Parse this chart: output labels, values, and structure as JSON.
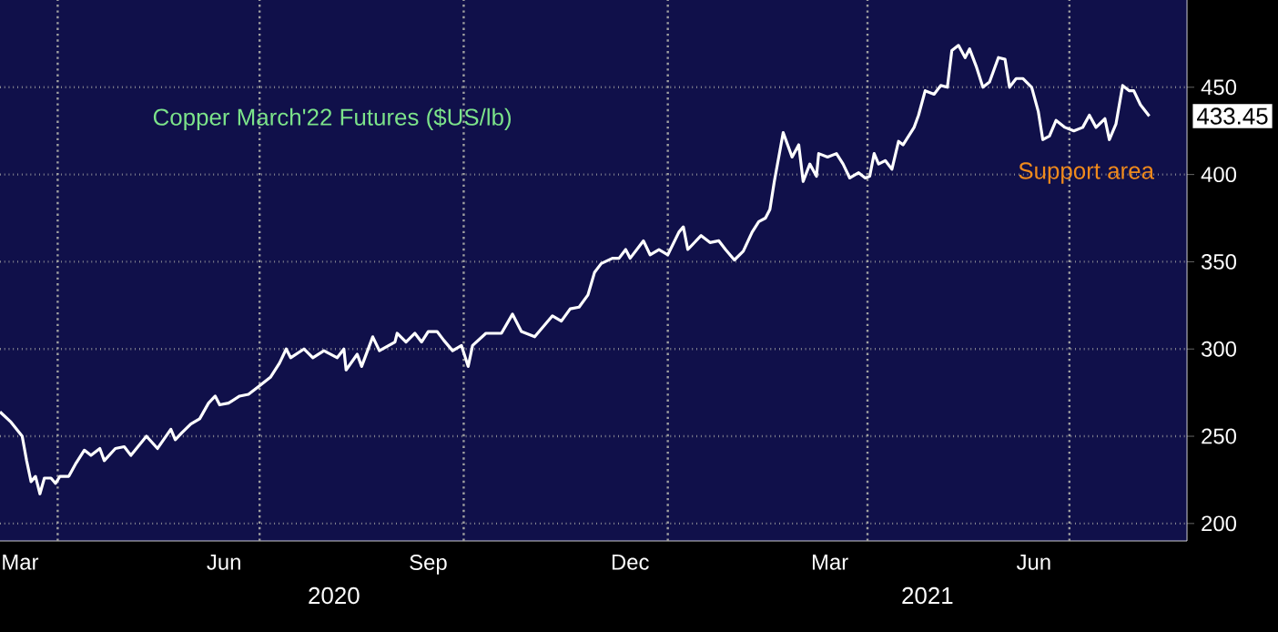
{
  "chart_data": {
    "type": "line",
    "title": "Copper March'22 Futures ($US/lb)",
    "x": [
      "2020-03-06",
      "2020-03-11",
      "2020-03-16",
      "2020-03-18",
      "2020-03-20",
      "2020-03-22",
      "2020-03-24",
      "2020-03-26",
      "2020-03-29",
      "2020-03-31",
      "2020-04-02",
      "2020-04-06",
      "2020-04-09",
      "2020-04-13",
      "2020-04-16",
      "2020-04-20",
      "2020-04-22",
      "2020-04-27",
      "2020-05-01",
      "2020-05-04",
      "2020-05-11",
      "2020-05-16",
      "2020-05-22",
      "2020-05-24",
      "2020-05-27",
      "2020-05-31",
      "2020-06-04",
      "2020-06-08",
      "2020-06-11",
      "2020-06-13",
      "2020-06-17",
      "2020-06-22",
      "2020-06-26",
      "2020-06-30",
      "2020-07-06",
      "2020-07-10",
      "2020-07-13",
      "2020-07-15",
      "2020-07-21",
      "2020-07-25",
      "2020-07-30",
      "2020-08-05",
      "2020-08-08",
      "2020-08-09",
      "2020-08-14",
      "2020-08-16",
      "2020-08-21",
      "2020-08-24",
      "2020-08-31",
      "2020-09-01",
      "2020-09-05",
      "2020-09-09",
      "2020-09-12",
      "2020-09-15",
      "2020-09-19",
      "2020-09-22",
      "2020-09-26",
      "2020-09-30",
      "2020-10-03",
      "2020-10-05",
      "2020-10-11",
      "2020-10-18",
      "2020-10-23",
      "2020-10-27",
      "2020-11-02",
      "2020-11-10",
      "2020-11-14",
      "2020-11-18",
      "2020-11-22",
      "2020-11-26",
      "2020-11-29",
      "2020-12-02",
      "2020-12-07",
      "2020-12-10",
      "2020-12-13",
      "2020-12-15",
      "2020-12-21",
      "2020-12-24",
      "2020-12-28",
      "2021-01-01",
      "2021-01-06",
      "2021-01-08",
      "2021-01-10",
      "2021-01-16",
      "2021-01-20",
      "2021-01-24",
      "2021-01-27",
      "2021-01-31",
      "2021-02-04",
      "2021-02-08",
      "2021-02-11",
      "2021-02-14",
      "2021-02-16",
      "2021-02-18",
      "2021-02-20",
      "2021-02-22",
      "2021-02-26",
      "2021-03-01",
      "2021-03-03",
      "2021-03-06",
      "2021-03-09",
      "2021-03-10",
      "2021-03-14",
      "2021-03-18",
      "2021-03-21",
      "2021-03-24",
      "2021-03-28",
      "2021-03-31",
      "2021-04-02",
      "2021-04-04",
      "2021-04-06",
      "2021-04-09",
      "2021-04-12",
      "2021-04-15",
      "2021-04-17",
      "2021-04-22",
      "2021-04-24",
      "2021-04-27",
      "2021-05-01",
      "2021-05-04",
      "2021-05-07",
      "2021-05-09",
      "2021-05-12",
      "2021-05-15",
      "2021-05-17",
      "2021-05-20",
      "2021-05-23",
      "2021-05-26",
      "2021-05-30",
      "2021-06-02",
      "2021-06-04",
      "2021-06-07",
      "2021-06-10",
      "2021-06-14",
      "2021-06-17",
      "2021-06-19",
      "2021-06-22",
      "2021-06-25",
      "2021-06-29",
      "2021-07-03",
      "2021-07-07",
      "2021-07-10",
      "2021-07-13",
      "2021-07-17",
      "2021-07-19",
      "2021-07-22",
      "2021-07-25",
      "2021-07-28",
      "2021-07-30",
      "2021-08-02",
      "2021-08-06"
    ],
    "series": [
      {
        "color": "#ffffff",
        "values": [
          264,
          258,
          250,
          236,
          224,
          227,
          217,
          226,
          226,
          223,
          227,
          227,
          234,
          242,
          239,
          243,
          236,
          243,
          244,
          239,
          250,
          243,
          254,
          248,
          252,
          257,
          260,
          269,
          273,
          268,
          269,
          273,
          274,
          278,
          284,
          292,
          300,
          295,
          300,
          295,
          299,
          295,
          300,
          288,
          297,
          290,
          307,
          299,
          304,
          309,
          304,
          309,
          304,
          310,
          310,
          305,
          299,
          302,
          290,
          302,
          309,
          309,
          320,
          310,
          307,
          319,
          316,
          323,
          324,
          331,
          344,
          349,
          352,
          352,
          357,
          352,
          362,
          354,
          357,
          354,
          367,
          370,
          357,
          365,
          361,
          362,
          357,
          351,
          356,
          367,
          373,
          375,
          380,
          396,
          410,
          424,
          410,
          417,
          396,
          406,
          399,
          412,
          410,
          412,
          406,
          398,
          401,
          398,
          399,
          412,
          406,
          408,
          403,
          419,
          417,
          427,
          434,
          448,
          446,
          451,
          450,
          471,
          474,
          467,
          472,
          462,
          450,
          453,
          467,
          466,
          450,
          455,
          455,
          450,
          436,
          420,
          422,
          431,
          427,
          425,
          427,
          434,
          427,
          432,
          420,
          429,
          451,
          448,
          448,
          440,
          433.45
        ]
      }
    ],
    "xlim": [
      "2020-03-06",
      "2021-08-23"
    ],
    "xticks": [
      {
        "value": "2020-03-15",
        "label": "Mar"
      },
      {
        "value": "2020-06-15",
        "label": "Jun"
      },
      {
        "value": "2020-09-15",
        "label": "Sep"
      },
      {
        "value": "2020-12-15",
        "label": "Dec"
      },
      {
        "value": "2021-03-15",
        "label": "Mar"
      },
      {
        "value": "2021-06-15",
        "label": "Jun"
      },
      {
        "value": "2020-04-01",
        "label": null
      },
      {
        "value": "2020-07-01",
        "label": null
      },
      {
        "value": "2020-10-01",
        "label": null
      },
      {
        "value": "2021-01-01",
        "label": null
      },
      {
        "value": "2021-04-01",
        "label": null
      },
      {
        "value": "2021-07-01",
        "label": null
      }
    ],
    "ylim": [
      190,
      500
    ],
    "yticks": [
      200,
      250,
      300,
      350,
      400,
      450
    ],
    "grid": true,
    "annotations": [
      "Support area",
      "433.45",
      "2020",
      "2021"
    ]
  }
}
